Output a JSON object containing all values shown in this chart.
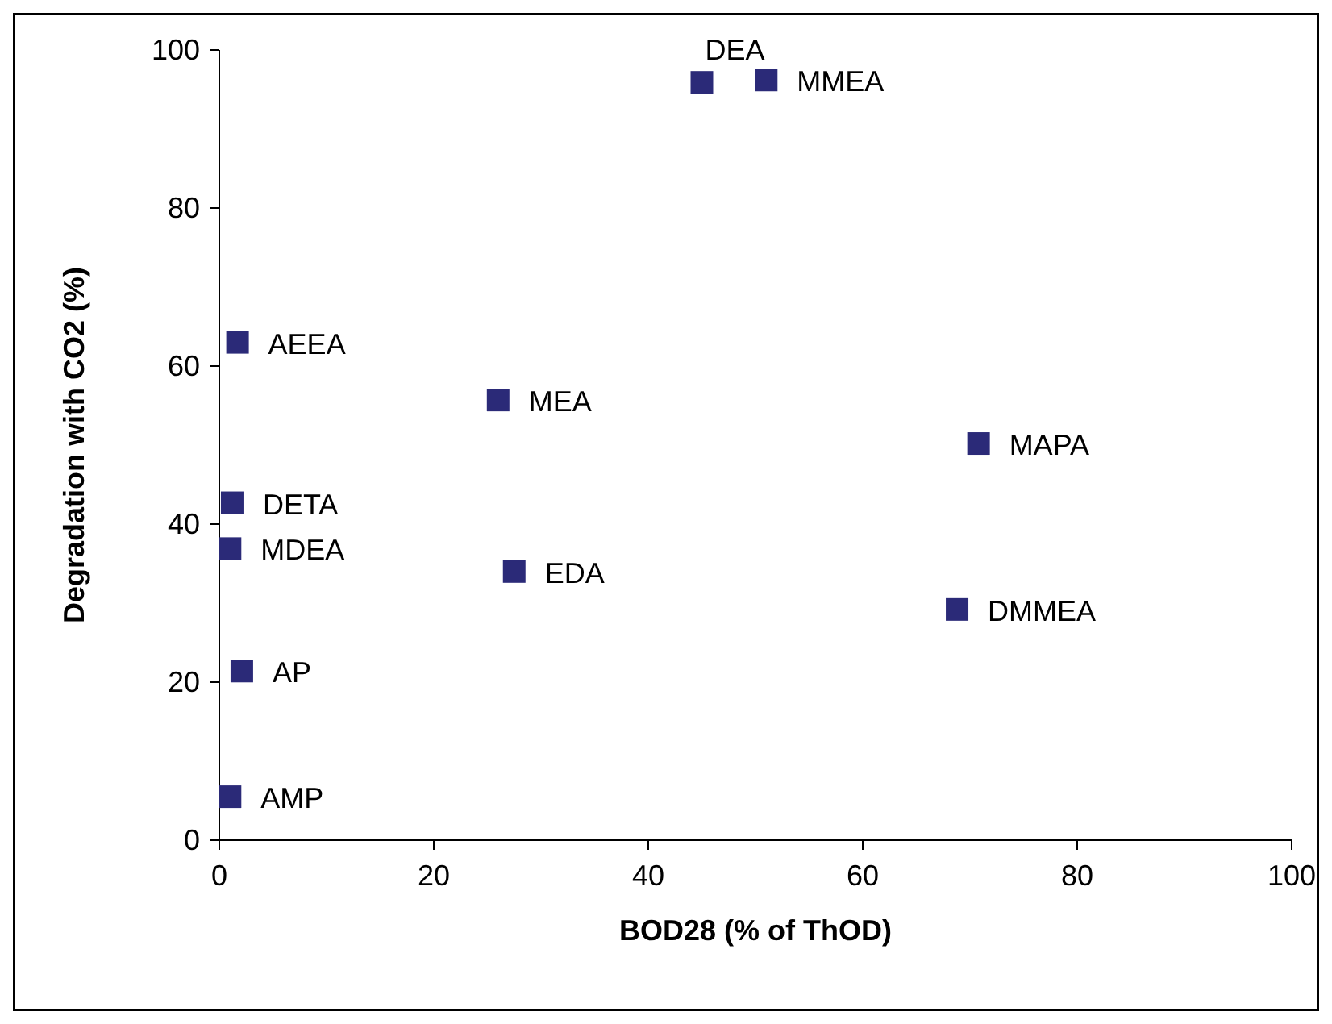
{
  "chart_data": {
    "type": "scatter",
    "xlabel": "BOD28 (% of ThOD)",
    "ylabel": "Degradation with CO2 (%)",
    "x": [
      45,
      51,
      1.7,
      26,
      70.8,
      1.2,
      1,
      27.5,
      68.8,
      2.1,
      1
    ],
    "values": [
      95.9,
      96.2,
      63,
      55.7,
      50.2,
      42.7,
      36.9,
      34,
      29.2,
      21.4,
      5.5
    ],
    "color": "#2b2a78",
    "marker": "square",
    "grid": false,
    "xlim": [
      0,
      100
    ],
    "xticks": [
      0,
      20,
      40,
      60,
      80,
      100
    ],
    "ylim": [
      0,
      100
    ],
    "yticks": [
      0,
      20,
      40,
      60,
      80,
      100
    ],
    "annotations": [
      {
        "text": "DEA",
        "x": 45,
        "y": 95.9
      },
      {
        "text": "MMEA",
        "x": 51,
        "y": 96.2
      },
      {
        "text": "AEEA",
        "x": 1.7,
        "y": 63
      },
      {
        "text": "MEA",
        "x": 26,
        "y": 55.7
      },
      {
        "text": "MAPA",
        "x": 70.8,
        "y": 50.2
      },
      {
        "text": "DETA",
        "x": 1.2,
        "y": 42.7
      },
      {
        "text": "MDEA",
        "x": 1,
        "y": 36.9
      },
      {
        "text": "EDA",
        "x": 27.5,
        "y": 34
      },
      {
        "text": "DMMEA",
        "x": 68.8,
        "y": 29.2
      },
      {
        "text": "AP",
        "x": 2.1,
        "y": 21.4
      },
      {
        "text": "AMP",
        "x": 1,
        "y": 5.5
      }
    ]
  }
}
